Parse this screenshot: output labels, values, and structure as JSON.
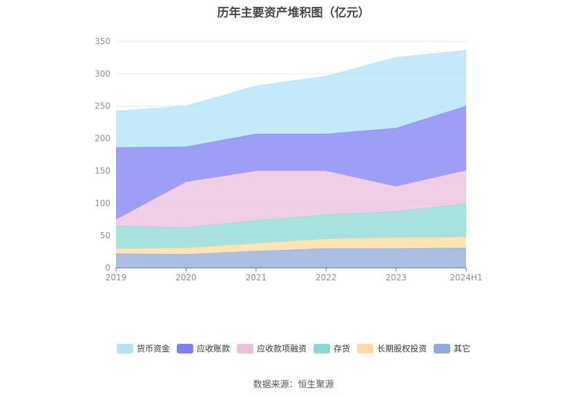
{
  "title": "历年主要资产堆积图（亿元）",
  "source_text": "数据来源：恒生聚源",
  "chart_data": {
    "type": "area",
    "stacked": true,
    "title": "历年主要资产堆积图（亿元）",
    "xlabel": "",
    "ylabel": "",
    "categories": [
      "2019",
      "2020",
      "2021",
      "2022",
      "2023",
      "2024H1"
    ],
    "ylim": [
      0,
      350
    ],
    "yticks": [
      0,
      50,
      100,
      150,
      200,
      250,
      300,
      350
    ],
    "grid": true,
    "legend_position": "bottom",
    "series": [
      {
        "name": "其它",
        "color": "#8FAADC",
        "values": [
          22,
          21,
          26,
          30,
          30,
          31
        ]
      },
      {
        "name": "长期股权投资",
        "color": "#FFDBA0",
        "values": [
          8,
          10,
          12,
          15,
          17,
          17
        ]
      },
      {
        "name": "存货",
        "color": "#8AD8D4",
        "values": [
          35,
          31,
          35,
          37,
          40,
          51
        ]
      },
      {
        "name": "应收款项融资",
        "color": "#EBBEDC",
        "values": [
          10,
          71,
          77,
          68,
          39,
          52
        ]
      },
      {
        "name": "应收账款",
        "color": "#7B7FF2",
        "values": [
          111,
          54,
          57,
          57,
          90,
          99
        ]
      },
      {
        "name": "货币资金",
        "color": "#B0E2F8",
        "values": [
          56,
          63,
          74,
          89,
          109,
          86
        ]
      }
    ],
    "legend_order": [
      "货币资金",
      "应收账款",
      "应收款项融资",
      "存货",
      "长期股权投资",
      "其它"
    ]
  }
}
